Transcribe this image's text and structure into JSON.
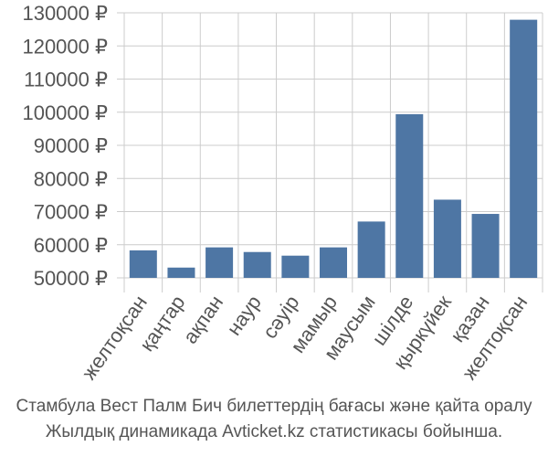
{
  "chart_data": {
    "type": "bar",
    "categories": [
      "желтоқсан",
      "қаңтар",
      "ақпан",
      "наур",
      "сәуір",
      "мамыр",
      "маусым",
      "шілде",
      "қыркүйек",
      "қазан",
      "желтоқсан"
    ],
    "values": [
      58300,
      53100,
      59200,
      57800,
      56700,
      59200,
      67000,
      99400,
      73600,
      69300,
      127900
    ],
    "y_ticks": [
      {
        "value": 50000,
        "label": "50000 ₽"
      },
      {
        "value": 60000,
        "label": "60000 ₽"
      },
      {
        "value": 70000,
        "label": "70000 ₽"
      },
      {
        "value": 80000,
        "label": "80000 ₽"
      },
      {
        "value": 90000,
        "label": "90000 ₽"
      },
      {
        "value": 100000,
        "label": "100000 ₽"
      },
      {
        "value": 110000,
        "label": "110000 ₽"
      },
      {
        "value": 120000,
        "label": "120000 ₽"
      },
      {
        "value": 130000,
        "label": "130000 ₽"
      }
    ],
    "ylim": [
      50000,
      130000
    ],
    "grid": true,
    "colors": {
      "bar": "#4e76a4",
      "grid": "#cccccc",
      "text": "#555555"
    }
  },
  "caption": {
    "line1": "Стамбула Вест Палм Бич билеттердің бағасы және қайта оралу",
    "line2": "Жылдық динамикада Avticket.kz статистикасы бойынша."
  }
}
